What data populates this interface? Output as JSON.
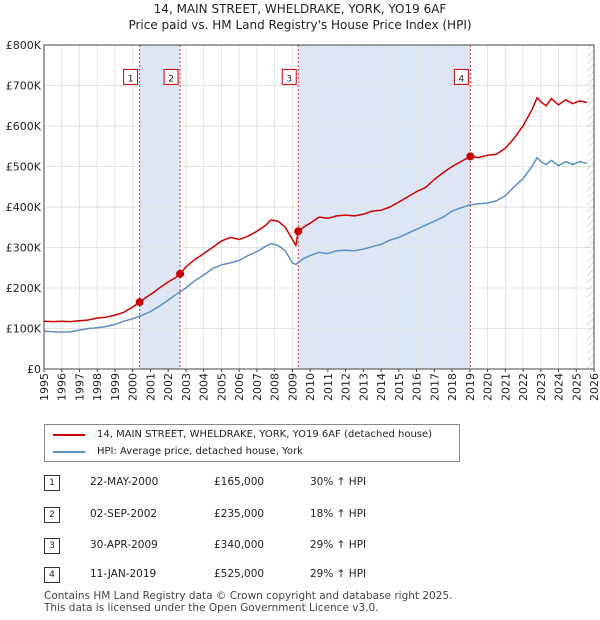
{
  "header": {
    "line1": "14, MAIN STREET, WHELDRAKE, YORK, YO19 6AF",
    "line2": "Price paid vs. HM Land Registry's House Price Index (HPI)"
  },
  "chart_data": {
    "type": "line",
    "title": "Price paid vs. HM Land Registry's House Price Index (HPI)",
    "xlim": [
      1995,
      2026
    ],
    "ylim": [
      0,
      800000
    ],
    "x_ticks": [
      "1995",
      "1996",
      "1997",
      "1998",
      "1999",
      "2000",
      "2001",
      "2002",
      "2003",
      "2004",
      "2005",
      "2006",
      "2007",
      "2008",
      "2009",
      "2010",
      "2011",
      "2012",
      "2013",
      "2014",
      "2015",
      "2016",
      "2017",
      "2018",
      "2019",
      "2020",
      "2021",
      "2022",
      "2023",
      "2024",
      "2025",
      "2026"
    ],
    "y_ticks": [
      {
        "value": 0,
        "label": "£0"
      },
      {
        "value": 100000,
        "label": "£100K"
      },
      {
        "value": 200000,
        "label": "£200K"
      },
      {
        "value": 300000,
        "label": "£300K"
      },
      {
        "value": 400000,
        "label": "£400K"
      },
      {
        "value": 500000,
        "label": "£500K"
      },
      {
        "value": 600000,
        "label": "£600K"
      },
      {
        "value": 700000,
        "label": "£700K"
      },
      {
        "value": 800000,
        "label": "£800K"
      }
    ],
    "grid": true,
    "shaded_periods": [
      [
        2000.39,
        2002.67
      ],
      [
        2009.33,
        2019.03
      ]
    ],
    "series": [
      {
        "name": "14, MAIN STREET, WHELDRAKE, YORK, YO19 6AF (detached house)",
        "color": "#cc0000",
        "points": [
          [
            1995.0,
            118000
          ],
          [
            1995.5,
            117000
          ],
          [
            1996.0,
            118000
          ],
          [
            1996.5,
            117000
          ],
          [
            1997.0,
            119000
          ],
          [
            1997.5,
            121000
          ],
          [
            1998.0,
            126000
          ],
          [
            1998.5,
            128000
          ],
          [
            1999.0,
            133000
          ],
          [
            1999.5,
            140000
          ],
          [
            2000.0,
            153000
          ],
          [
            2000.39,
            165000
          ],
          [
            2000.8,
            178000
          ],
          [
            2001.2,
            190000
          ],
          [
            2001.6,
            203000
          ],
          [
            2002.0,
            215000
          ],
          [
            2002.4,
            225000
          ],
          [
            2002.67,
            235000
          ],
          [
            2003.0,
            252000
          ],
          [
            2003.5,
            270000
          ],
          [
            2004.0,
            285000
          ],
          [
            2004.5,
            300000
          ],
          [
            2005.0,
            316000
          ],
          [
            2005.5,
            325000
          ],
          [
            2006.0,
            320000
          ],
          [
            2006.5,
            328000
          ],
          [
            2007.0,
            340000
          ],
          [
            2007.5,
            355000
          ],
          [
            2007.8,
            368000
          ],
          [
            2008.2,
            365000
          ],
          [
            2008.6,
            350000
          ],
          [
            2009.0,
            320000
          ],
          [
            2009.2,
            305000
          ],
          [
            2009.33,
            340000
          ],
          [
            2009.7,
            352000
          ],
          [
            2010.0,
            360000
          ],
          [
            2010.5,
            375000
          ],
          [
            2011.0,
            372000
          ],
          [
            2011.5,
            378000
          ],
          [
            2012.0,
            380000
          ],
          [
            2012.5,
            378000
          ],
          [
            2013.0,
            382000
          ],
          [
            2013.5,
            390000
          ],
          [
            2014.0,
            392000
          ],
          [
            2014.5,
            400000
          ],
          [
            2015.0,
            412000
          ],
          [
            2015.5,
            425000
          ],
          [
            2016.0,
            438000
          ],
          [
            2016.5,
            448000
          ],
          [
            2017.0,
            468000
          ],
          [
            2017.5,
            485000
          ],
          [
            2018.0,
            500000
          ],
          [
            2018.5,
            512000
          ],
          [
            2019.03,
            525000
          ],
          [
            2019.5,
            522000
          ],
          [
            2020.0,
            528000
          ],
          [
            2020.5,
            530000
          ],
          [
            2021.0,
            545000
          ],
          [
            2021.5,
            570000
          ],
          [
            2022.0,
            600000
          ],
          [
            2022.5,
            640000
          ],
          [
            2022.8,
            670000
          ],
          [
            2023.0,
            660000
          ],
          [
            2023.3,
            650000
          ],
          [
            2023.6,
            668000
          ],
          [
            2024.0,
            652000
          ],
          [
            2024.4,
            665000
          ],
          [
            2024.8,
            655000
          ],
          [
            2025.2,
            662000
          ],
          [
            2025.6,
            658000
          ]
        ]
      },
      {
        "name": "HPI: Average price, detached house, York",
        "color": "#5b8fc9",
        "points": [
          [
            1995.0,
            93000
          ],
          [
            1995.5,
            92000
          ],
          [
            1996.0,
            91000
          ],
          [
            1996.5,
            92000
          ],
          [
            1997.0,
            96000
          ],
          [
            1997.5,
            100000
          ],
          [
            1998.0,
            102000
          ],
          [
            1998.5,
            105000
          ],
          [
            1999.0,
            110000
          ],
          [
            1999.5,
            118000
          ],
          [
            2000.0,
            124000
          ],
          [
            2000.5,
            132000
          ],
          [
            2001.0,
            142000
          ],
          [
            2001.5,
            155000
          ],
          [
            2002.0,
            170000
          ],
          [
            2002.5,
            186000
          ],
          [
            2003.0,
            200000
          ],
          [
            2003.5,
            218000
          ],
          [
            2004.0,
            232000
          ],
          [
            2004.5,
            248000
          ],
          [
            2005.0,
            257000
          ],
          [
            2005.5,
            262000
          ],
          [
            2006.0,
            268000
          ],
          [
            2006.5,
            280000
          ],
          [
            2007.0,
            290000
          ],
          [
            2007.5,
            303000
          ],
          [
            2007.8,
            310000
          ],
          [
            2008.2,
            305000
          ],
          [
            2008.6,
            292000
          ],
          [
            2009.0,
            262000
          ],
          [
            2009.2,
            258000
          ],
          [
            2009.6,
            272000
          ],
          [
            2010.0,
            280000
          ],
          [
            2010.5,
            288000
          ],
          [
            2011.0,
            285000
          ],
          [
            2011.5,
            292000
          ],
          [
            2012.0,
            293000
          ],
          [
            2012.5,
            292000
          ],
          [
            2013.0,
            296000
          ],
          [
            2013.5,
            302000
          ],
          [
            2014.0,
            308000
          ],
          [
            2014.5,
            318000
          ],
          [
            2015.0,
            325000
          ],
          [
            2015.5,
            335000
          ],
          [
            2016.0,
            345000
          ],
          [
            2016.5,
            355000
          ],
          [
            2017.0,
            365000
          ],
          [
            2017.5,
            375000
          ],
          [
            2018.0,
            390000
          ],
          [
            2018.5,
            398000
          ],
          [
            2019.0,
            405000
          ],
          [
            2019.5,
            408000
          ],
          [
            2020.0,
            410000
          ],
          [
            2020.5,
            415000
          ],
          [
            2021.0,
            428000
          ],
          [
            2021.5,
            450000
          ],
          [
            2022.0,
            470000
          ],
          [
            2022.5,
            500000
          ],
          [
            2022.8,
            522000
          ],
          [
            2023.0,
            512000
          ],
          [
            2023.3,
            505000
          ],
          [
            2023.6,
            515000
          ],
          [
            2024.0,
            502000
          ],
          [
            2024.4,
            512000
          ],
          [
            2024.8,
            505000
          ],
          [
            2025.2,
            512000
          ],
          [
            2025.6,
            508000
          ]
        ]
      }
    ],
    "sales": [
      {
        "label": "1",
        "x": 2000.39,
        "y": 165000
      },
      {
        "label": "2",
        "x": 2002.67,
        "y": 235000
      },
      {
        "label": "3",
        "x": 2009.33,
        "y": 340000
      },
      {
        "label": "4",
        "x": 2019.03,
        "y": 525000
      }
    ],
    "marker_label_value": 720000
  },
  "legend": {
    "items": [
      {
        "label": "14, MAIN STREET, WHELDRAKE, YORK, YO19 6AF (detached house)",
        "color": "#cc0000"
      },
      {
        "label": "HPI: Average price, detached house, York",
        "color": "#5b8fc9"
      }
    ]
  },
  "sales_table": [
    {
      "num": "1",
      "date": "22-MAY-2000",
      "price": "£165,000",
      "hpi": "30% ↑ HPI"
    },
    {
      "num": "2",
      "date": "02-SEP-2002",
      "price": "£235,000",
      "hpi": "18% ↑ HPI"
    },
    {
      "num": "3",
      "date": "30-APR-2009",
      "price": "£340,000",
      "hpi": "29% ↑ HPI"
    },
    {
      "num": "4",
      "date": "11-JAN-2019",
      "price": "£525,000",
      "hpi": "29% ↑ HPI"
    }
  ],
  "footer": {
    "line1": "Contains HM Land Registry data © Crown copyright and database right 2025.",
    "line2": "This data is licensed under the Open Government Licence v3.0."
  }
}
